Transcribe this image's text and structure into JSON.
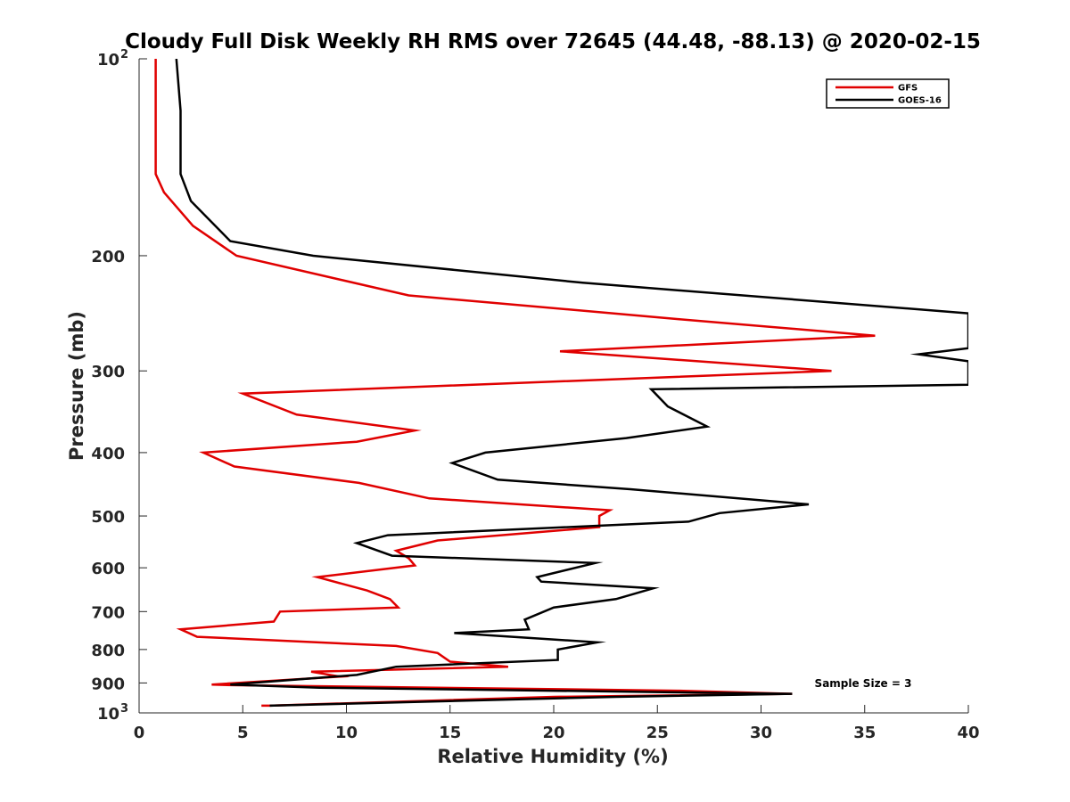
{
  "chart_data": {
    "type": "line",
    "title": "Cloudy Full Disk Weekly RH RMS over 72645 (44.48, -88.13) @ 2020-02-15",
    "xlabel": "Relative Humidity (%)",
    "ylabel": "Pressure (mb)",
    "xlim": [
      0,
      40
    ],
    "ylim": [
      100,
      1000
    ],
    "y_scale": "log",
    "y_reversed": true,
    "x_ticks": [
      "0",
      "5",
      "10",
      "15",
      "20",
      "25",
      "30",
      "35",
      "40"
    ],
    "y_ticks": [
      {
        "value": 100,
        "label": "10",
        "exp": "2"
      },
      {
        "value": 200,
        "label": "200"
      },
      {
        "value": 300,
        "label": "300"
      },
      {
        "value": 400,
        "label": "400"
      },
      {
        "value": 500,
        "label": "500"
      },
      {
        "value": 600,
        "label": "600"
      },
      {
        "value": 700,
        "label": "700"
      },
      {
        "value": 800,
        "label": "800"
      },
      {
        "value": 900,
        "label": "900"
      },
      {
        "value": 1000,
        "label": "10",
        "exp": "3"
      }
    ],
    "grid": false,
    "legend_position": "top-right",
    "annotation": "Sample Size = 3",
    "series": [
      {
        "name": "GFS",
        "color": "#e00000",
        "points": [
          [
            0.8,
            100
          ],
          [
            0.8,
            150
          ],
          [
            1.2,
            160
          ],
          [
            2.6,
            180
          ],
          [
            4.7,
            200
          ],
          [
            13.0,
            230
          ],
          [
            26.0,
            250
          ],
          [
            35.5,
            265
          ],
          [
            20.3,
            280
          ],
          [
            33.4,
            300
          ],
          [
            5.0,
            325
          ],
          [
            7.6,
            350
          ],
          [
            13.3,
            370
          ],
          [
            10.5,
            385
          ],
          [
            3.1,
            400
          ],
          [
            4.6,
            420
          ],
          [
            10.6,
            445
          ],
          [
            14.0,
            470
          ],
          [
            22.7,
            490
          ],
          [
            22.2,
            500
          ],
          [
            22.2,
            520
          ],
          [
            14.4,
            545
          ],
          [
            12.4,
            565
          ],
          [
            13.0,
            580
          ],
          [
            13.3,
            595
          ],
          [
            8.6,
            620
          ],
          [
            11.0,
            650
          ],
          [
            12.1,
            670
          ],
          [
            12.5,
            690
          ],
          [
            6.8,
            700
          ],
          [
            6.5,
            725
          ],
          [
            2.0,
            745
          ],
          [
            2.8,
            765
          ],
          [
            12.4,
            790
          ],
          [
            14.4,
            810
          ],
          [
            15.0,
            835
          ],
          [
            17.8,
            850
          ],
          [
            8.3,
            865
          ],
          [
            9.7,
            880
          ],
          [
            3.5,
            905
          ],
          [
            4.5,
            907
          ],
          [
            26.0,
            925
          ],
          [
            31.5,
            935
          ],
          [
            20.0,
            945
          ],
          [
            6.3,
            975
          ],
          [
            5.9,
            975
          ]
        ]
      },
      {
        "name": "GOES-16",
        "color": "#000000",
        "points": [
          [
            1.8,
            100
          ],
          [
            2.0,
            120
          ],
          [
            2.0,
            150
          ],
          [
            2.5,
            165
          ],
          [
            4.4,
            190
          ],
          [
            8.4,
            200
          ],
          [
            21.4,
            220
          ],
          [
            40.0,
            245
          ],
          [
            40.0,
            277
          ],
          [
            37.6,
            283
          ],
          [
            40.0,
            290
          ],
          [
            40.0,
            315
          ],
          [
            24.7,
            320
          ],
          [
            25.5,
            340
          ],
          [
            27.4,
            365
          ],
          [
            23.5,
            380
          ],
          [
            16.7,
            400
          ],
          [
            15.1,
            415
          ],
          [
            17.3,
            440
          ],
          [
            23.7,
            455
          ],
          [
            32.3,
            480
          ],
          [
            28.0,
            495
          ],
          [
            26.5,
            510
          ],
          [
            12.0,
            535
          ],
          [
            10.5,
            550
          ],
          [
            12.2,
            575
          ],
          [
            22.0,
            590
          ],
          [
            19.2,
            620
          ],
          [
            19.4,
            630
          ],
          [
            24.8,
            645
          ],
          [
            23.0,
            670
          ],
          [
            20.0,
            690
          ],
          [
            18.6,
            720
          ],
          [
            18.8,
            745
          ],
          [
            15.2,
            755
          ],
          [
            22.1,
            780
          ],
          [
            20.2,
            800
          ],
          [
            20.2,
            830
          ],
          [
            12.4,
            850
          ],
          [
            10.5,
            875
          ],
          [
            4.4,
            905
          ],
          [
            8.7,
            915
          ],
          [
            31.5,
            935
          ],
          [
            23.0,
            945
          ],
          [
            6.3,
            975
          ]
        ]
      }
    ]
  }
}
